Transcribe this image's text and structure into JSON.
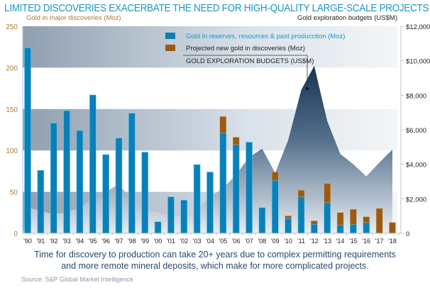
{
  "title": "LIMITED DISCOVERIES EXACERBATE THE NEED FOR HIGH-QUALITY LARGE-SCALE PROJECTS",
  "caption_line1": "Time for discovery to production can take 20+ years due to complex permitting requirements",
  "caption_line2": "and more remote mineral deposits, which make for more complicated projects.",
  "source": "Source: S&P Global Market Intelligence",
  "colors": {
    "reserves": "#0a80b8",
    "projected": "#9a5a12",
    "budget_top": "#0b2547",
    "title": "#1a96c8",
    "left_axis": "#b07a30"
  },
  "chart_data": {
    "type": "bar",
    "title": "LIMITED DISCOVERIES EXACERBATE THE NEED FOR HIGH-QUALITY LARGE-SCALE PROJECTS",
    "ylabel": "Gold in major discoveries (Moz)",
    "y2label": "Gold exploration budgets (US$M)",
    "ylim": [
      0,
      250
    ],
    "y2lim": [
      0,
      12000
    ],
    "yticks": [
      "0",
      "50",
      "100",
      "150",
      "200",
      "250"
    ],
    "y2ticks": [
      "0",
      "$2,000",
      "$4,000",
      "$6,000",
      "$8,000",
      "$10,000",
      "$12,000"
    ],
    "categories": [
      "'90",
      "'91",
      "'92",
      "'93",
      "'94",
      "'95",
      "'96",
      "'97",
      "'98",
      "'99",
      "'00",
      "'01",
      "'02",
      "'03",
      "'04",
      "'05",
      "'06",
      "'07",
      "'08",
      "'09",
      "'10",
      "'11",
      "'12",
      "'13",
      "'14",
      "'15",
      "'16",
      "'17",
      "'18"
    ],
    "legend_placement": "top-center",
    "annotation": "GOLD EXPLORATION BUDGETS (US$M)",
    "series": [
      {
        "name": "Gold in reserves, resources & past producction (Moz)",
        "type": "stacked-bar",
        "values": [
          224,
          76,
          133,
          148,
          124,
          167,
          95,
          115,
          145,
          98,
          14,
          44,
          40,
          83,
          74,
          121,
          107,
          110,
          31,
          64,
          18,
          44,
          11,
          37,
          10,
          11,
          13,
          0,
          0
        ]
      },
      {
        "name": "Projected new gold in discoveries (Moz)",
        "type": "stacked-bar",
        "values": [
          0,
          0,
          0,
          0,
          0,
          0,
          0,
          0,
          0,
          0,
          0,
          0,
          0,
          0,
          0,
          20,
          9,
          0,
          0,
          10,
          3,
          8,
          4,
          23,
          15,
          18,
          7,
          30,
          13
        ]
      },
      {
        "name": "GOLD EXPLORATION BUDGETS (US$M)",
        "type": "area",
        "axis": "right",
        "values": [
          1500,
          1300,
          1100,
          1200,
          1500,
          2000,
          2400,
          2850,
          1900,
          1400,
          1200,
          1000,
          1000,
          1400,
          2100,
          2600,
          3400,
          4400,
          4900,
          3500,
          5400,
          8300,
          9700,
          6500,
          4600,
          4000,
          3300,
          4100,
          4850
        ]
      }
    ]
  }
}
